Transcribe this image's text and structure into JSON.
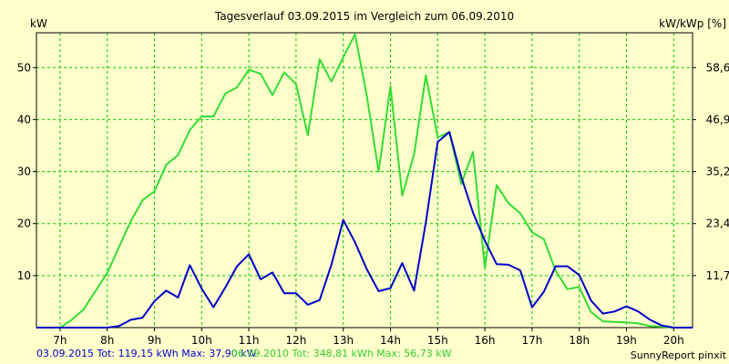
{
  "chart_data": {
    "type": "line",
    "title": "Tagesverlauf 03.09.2015 im Vergleich zum 06.09.2010",
    "ylabel_left": "kW",
    "ylabel_right": "kW/kWp [%]",
    "x_ticks": [
      "7h",
      "8h",
      "9h",
      "10h",
      "11h",
      "12h",
      "13h",
      "14h",
      "15h",
      "16h",
      "17h",
      "18h",
      "19h",
      "20h"
    ],
    "y_ticks_left": [
      "10",
      "20",
      "30",
      "40",
      "50"
    ],
    "y_ticks_right": [
      "11,7",
      "23,4",
      "35,2",
      "46,9",
      "58,6"
    ],
    "xlim": [
      6.5,
      20.4
    ],
    "ylim": [
      0,
      56.7
    ],
    "grid": true,
    "series": [
      {
        "name": "03.09.2015",
        "color": "#0000cc",
        "x": [
          6.5,
          7.0,
          7.25,
          7.5,
          7.75,
          8.0,
          8.25,
          8.5,
          8.75,
          9.0,
          9.25,
          9.5,
          9.75,
          10.0,
          10.25,
          10.5,
          10.75,
          11.0,
          11.25,
          11.5,
          11.75,
          12.0,
          12.25,
          12.5,
          12.75,
          13.0,
          13.25,
          13.5,
          13.75,
          14.0,
          14.25,
          14.5,
          14.75,
          15.0,
          15.25,
          15.5,
          15.75,
          16.0,
          16.25,
          16.5,
          16.75,
          17.0,
          17.25,
          17.5,
          17.75,
          18.0,
          18.25,
          18.5,
          18.75,
          19.0,
          19.25,
          19.5,
          19.75,
          20.0,
          20.4
        ],
        "y": [
          0,
          0,
          0,
          0,
          0,
          0,
          0.3,
          1.5,
          1.9,
          5.1,
          7.1,
          5.8,
          12.0,
          7.5,
          3.9,
          7.7,
          11.8,
          14.1,
          9.3,
          10.6,
          6.6,
          6.6,
          4.4,
          5.3,
          12.1,
          20.7,
          16.4,
          11.2,
          7.0,
          7.6,
          12.4,
          7.1,
          20.2,
          35.7,
          37.6,
          29.0,
          22.1,
          16.7,
          12.2,
          12.1,
          11.0,
          3.9,
          6.9,
          11.8,
          11.8,
          10.1,
          5.2,
          2.7,
          3.1,
          4.1,
          3.1,
          1.5,
          0.4,
          0,
          0
        ]
      },
      {
        "name": "06.09.2010",
        "color": "#33dd33",
        "x": [
          6.5,
          7.0,
          7.25,
          7.5,
          7.75,
          8.0,
          8.25,
          8.5,
          8.75,
          9.0,
          9.25,
          9.5,
          9.75,
          10.0,
          10.25,
          10.5,
          10.75,
          11.0,
          11.25,
          11.5,
          11.75,
          12.0,
          12.25,
          12.5,
          12.75,
          13.0,
          13.25,
          13.5,
          13.75,
          14.0,
          14.25,
          14.5,
          14.75,
          15.0,
          15.25,
          15.5,
          15.75,
          16.0,
          16.25,
          16.5,
          16.75,
          17.0,
          17.25,
          17.5,
          17.75,
          18.0,
          18.25,
          18.5,
          18.75,
          19.0,
          19.25,
          19.5,
          19.75,
          20.0,
          20.4
        ],
        "y": [
          0,
          0,
          1.5,
          3.5,
          7.0,
          10.5,
          15.5,
          20.5,
          24.5,
          26.2,
          31.3,
          33.2,
          38.0,
          40.6,
          40.6,
          45.0,
          46.2,
          49.6,
          48.8,
          44.7,
          49.1,
          46.8,
          37.0,
          51.6,
          47.3,
          52.0,
          56.4,
          44.5,
          30.0,
          46.4,
          25.4,
          33.3,
          48.5,
          36.6,
          37.6,
          27.6,
          33.8,
          11.5,
          27.4,
          23.9,
          22.0,
          18.3,
          17.0,
          10.9,
          7.4,
          7.8,
          3.0,
          1.2,
          1.1,
          1.0,
          0.8,
          0.3,
          0.2,
          0,
          0
        ]
      }
    ]
  },
  "footer": {
    "series_a_label": "03.09.2015 Tot: 119,15 kWh Max: 37,90 kW",
    "series_b_label": "06.09.2010 Tot: 348,81 kWh Max: 56,73 kW",
    "credit": "SunnyReport pinxit"
  },
  "colors": {
    "background": "#ffffcc",
    "grid": "#00cc00",
    "axis": "#000000"
  }
}
